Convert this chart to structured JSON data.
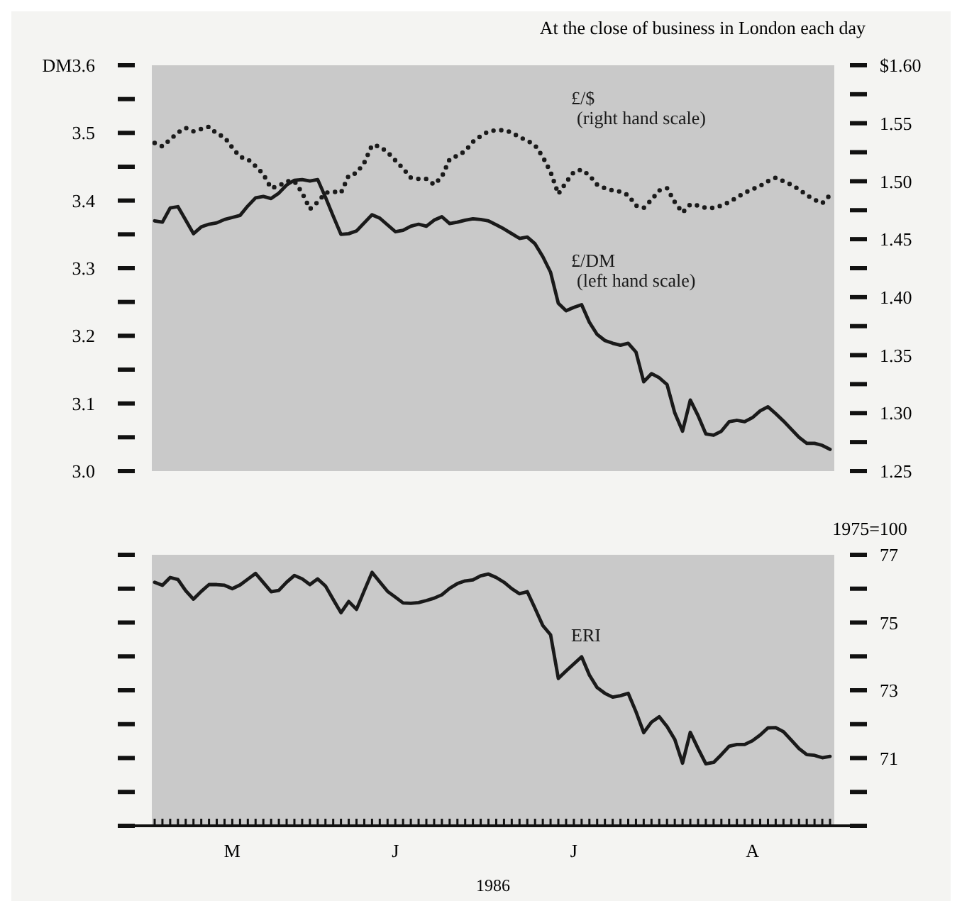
{
  "chart_data": [
    {
      "type": "line",
      "subtitle": "At the close of business in London each day",
      "tick_labels": "y",
      "categories": [
        null,
        null,
        null,
        null,
        null,
        null,
        null,
        null,
        null,
        null,
        null,
        null,
        null,
        null,
        null,
        null,
        null,
        null,
        null,
        null,
        null,
        null,
        null,
        null,
        null,
        null,
        null,
        null,
        null,
        null,
        null,
        null,
        null,
        null,
        null,
        null,
        null,
        null,
        null,
        null,
        null,
        null,
        null,
        null,
        null,
        null,
        null,
        null,
        null,
        null,
        null,
        null,
        null,
        null,
        null,
        null,
        null,
        null,
        null,
        null,
        null,
        null,
        null,
        null,
        null,
        null,
        null,
        null,
        null,
        null,
        null,
        null,
        null,
        null,
        null,
        null,
        null,
        null,
        null,
        null,
        null,
        null,
        null,
        null,
        null,
        null,
        null,
        null
      ],
      "ylim": [
        3.0,
        3.6
      ],
      "yticks": [
        {
          "value": 3.0,
          "label": "3.0"
        },
        {
          "value": 3.05,
          "label": null
        },
        3.1,
        {
          "value": 3.15,
          "label": null
        },
        3.2,
        {
          "value": 3.25,
          "label": null
        },
        3.3,
        {
          "value": 3.35,
          "label": null
        },
        3.4,
        {
          "value": 3.45,
          "label": null
        },
        3.5,
        {
          "value": 3.55,
          "label": null
        },
        {
          "value": 3.6,
          "label": "DM3.6"
        }
      ],
      "y2lim": [
        1.25,
        1.6
      ],
      "y2ticks": [
        1.25,
        {
          "value": 1.275,
          "label": null
        },
        {
          "value": 1.3,
          "label": "1.30"
        },
        {
          "value": 1.325,
          "label": null
        },
        1.35,
        {
          "value": 1.375,
          "label": null
        },
        {
          "value": 1.4,
          "label": "1.40"
        },
        {
          "value": 1.425,
          "label": null
        },
        1.45,
        {
          "value": 1.475,
          "label": null
        },
        {
          "value": 1.5,
          "label": "1.50"
        },
        {
          "value": 1.525,
          "label": null
        },
        1.55,
        {
          "value": 1.575,
          "label": null
        },
        {
          "value": 1.6,
          "label": "$1.60"
        }
      ],
      "series": [
        {
          "name": "£/DM (left hand scale)",
          "color": "#1a1a1a",
          "line_style": "solid",
          "values": [
            3.37,
            3.368,
            3.389,
            3.391,
            3.371,
            3.351,
            3.361,
            3.365,
            3.367,
            3.372,
            3.375,
            3.378,
            3.392,
            3.404,
            3.406,
            3.403,
            3.411,
            3.423,
            3.43,
            3.431,
            3.429,
            3.431,
            3.405,
            3.377,
            3.35,
            3.351,
            3.355,
            3.367,
            3.379,
            3.374,
            3.364,
            3.354,
            3.356,
            3.362,
            3.365,
            3.362,
            3.371,
            3.376,
            3.366,
            3.368,
            3.371,
            3.373,
            3.372,
            3.37,
            3.364,
            3.358,
            3.351,
            3.344,
            3.346,
            3.336,
            3.317,
            3.294,
            3.248,
            3.237,
            3.242,
            3.246,
            3.22,
            3.202,
            3.193,
            3.189,
            3.186,
            3.189,
            3.176,
            3.132,
            3.144,
            3.138,
            3.128,
            3.086,
            3.059,
            3.105,
            3.082,
            3.055,
            3.053,
            3.059,
            3.073,
            3.075,
            3.073,
            3.079,
            3.089,
            3.095,
            3.085,
            3.074,
            3.062,
            3.05,
            3.041,
            3.041,
            3.038,
            3.032
          ]
        },
        {
          "name": "£/$ (right hand scale)",
          "color": "#1a1a1a",
          "axis": "y2",
          "line_style": "dotted",
          "values": [
            1.533,
            1.53,
            1.536,
            1.542,
            1.546,
            1.543,
            1.545,
            1.547,
            1.541,
            1.538,
            1.529,
            1.521,
            1.519,
            1.513,
            1.506,
            1.494,
            1.496,
            1.5,
            1.5,
            1.49,
            1.476,
            1.482,
            1.49,
            1.491,
            1.49,
            1.505,
            1.507,
            1.516,
            1.531,
            1.53,
            1.525,
            1.518,
            1.511,
            1.503,
            1.502,
            1.502,
            1.497,
            1.504,
            1.519,
            1.522,
            1.526,
            1.534,
            1.539,
            1.543,
            1.544,
            1.544,
            1.542,
            1.538,
            1.535,
            1.531,
            1.521,
            1.508,
            1.489,
            1.499,
            1.508,
            1.51,
            1.505,
            1.497,
            1.494,
            1.492,
            1.491,
            1.488,
            1.479,
            1.477,
            1.484,
            1.492,
            1.494,
            1.482,
            1.473,
            1.48,
            1.479,
            1.477,
            1.477,
            1.479,
            1.482,
            1.486,
            1.49,
            1.493,
            1.496,
            1.5,
            1.503,
            1.5,
            1.497,
            1.493,
            1.488,
            1.484,
            1.481,
            1.488
          ]
        }
      ]
    },
    {
      "type": "line",
      "xlabel": "1986",
      "y2label": "1975=100",
      "categories": [
        null,
        null,
        null,
        null,
        null,
        null,
        null,
        null,
        null,
        null,
        "M",
        null,
        null,
        null,
        null,
        null,
        null,
        null,
        null,
        null,
        null,
        null,
        null,
        null,
        null,
        null,
        null,
        null,
        null,
        null,
        null,
        "J",
        null,
        null,
        null,
        null,
        null,
        null,
        null,
        null,
        null,
        null,
        null,
        null,
        null,
        null,
        null,
        null,
        null,
        null,
        null,
        null,
        null,
        null,
        "J",
        null,
        null,
        null,
        null,
        null,
        null,
        null,
        null,
        null,
        null,
        null,
        null,
        null,
        null,
        null,
        null,
        null,
        null,
        null,
        null,
        null,
        null,
        "A",
        null,
        null,
        null,
        null,
        null,
        null,
        null,
        null,
        null,
        null
      ],
      "y2lim": [
        69,
        77
      ],
      "y2ticks": [
        {
          "value": 69,
          "label": null
        },
        {
          "value": 70,
          "label": null
        },
        71,
        {
          "value": 72,
          "label": null
        },
        73,
        {
          "value": 74,
          "label": null
        },
        75,
        {
          "value": 76,
          "label": null
        },
        77
      ],
      "series": [
        {
          "name": "ERI",
          "color": "#1a1a1a",
          "axis": "y2",
          "line_style": "solid",
          "values": [
            76.19,
            76.1,
            76.33,
            76.27,
            75.94,
            75.69,
            75.92,
            76.12,
            76.12,
            76.1,
            76.0,
            76.11,
            76.28,
            76.45,
            76.18,
            75.91,
            75.95,
            76.19,
            76.39,
            76.29,
            76.12,
            76.29,
            76.08,
            75.68,
            75.29,
            75.62,
            75.39,
            75.94,
            76.48,
            76.2,
            75.92,
            75.75,
            75.58,
            75.57,
            75.59,
            75.65,
            75.72,
            75.82,
            76.01,
            76.15,
            76.23,
            76.26,
            76.38,
            76.43,
            76.33,
            76.19,
            76.0,
            75.85,
            75.91,
            75.42,
            74.91,
            74.64,
            73.35,
            73.57,
            73.78,
            73.99,
            73.45,
            73.08,
            72.91,
            72.8,
            72.84,
            72.91,
            72.37,
            71.75,
            72.06,
            72.22,
            71.93,
            71.55,
            70.85,
            71.76,
            71.28,
            70.83,
            70.87,
            71.1,
            71.35,
            71.4,
            71.4,
            71.51,
            71.68,
            71.89,
            71.9,
            71.78,
            71.53,
            71.28,
            71.1,
            71.08,
            71.01,
            71.05
          ]
        }
      ]
    }
  ]
}
